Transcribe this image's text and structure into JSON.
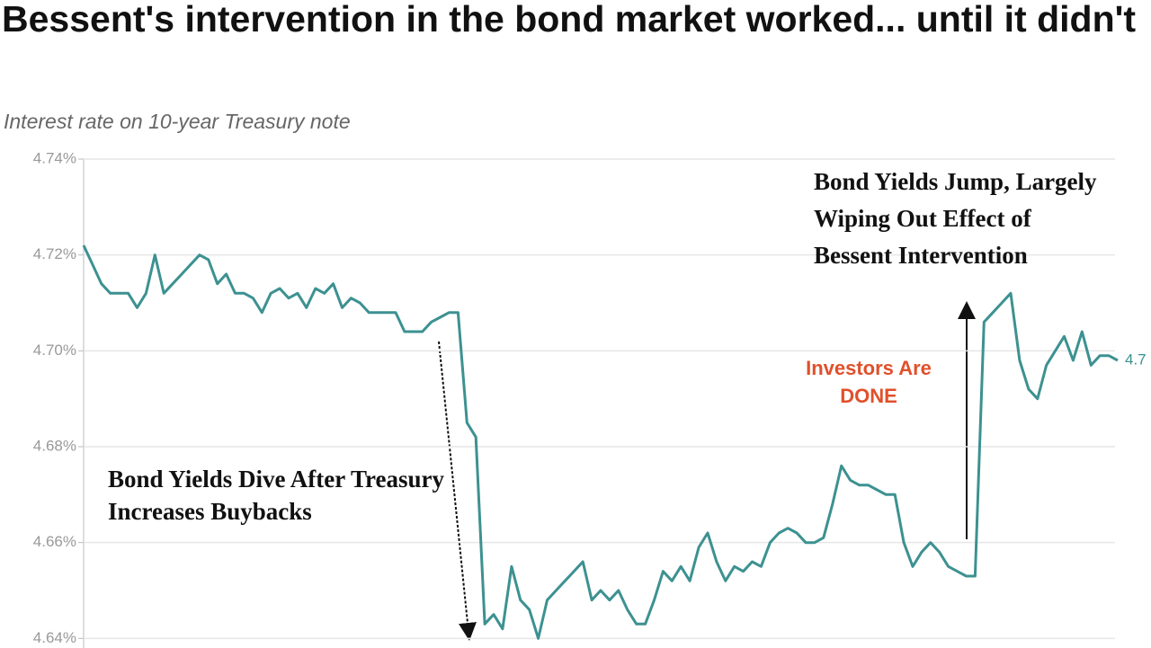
{
  "chart_data": {
    "type": "line",
    "title": "Bessent's intervention in the bond market worked... until it didn't",
    "subtitle": "Interest rate on 10-year Treasury note",
    "series": [
      {
        "name": "10-year Treasury yield",
        "color": "#3d9191",
        "values": [
          4.722,
          4.718,
          4.714,
          4.712,
          4.712,
          4.712,
          4.709,
          4.712,
          4.72,
          4.712,
          4.714,
          4.716,
          4.718,
          4.72,
          4.719,
          4.714,
          4.716,
          4.712,
          4.712,
          4.711,
          4.708,
          4.712,
          4.713,
          4.711,
          4.712,
          4.709,
          4.713,
          4.712,
          4.714,
          4.709,
          4.711,
          4.71,
          4.708,
          4.708,
          4.708,
          4.708,
          4.704,
          4.704,
          4.704,
          4.706,
          4.707,
          4.708,
          4.708,
          4.685,
          4.682,
          4.643,
          4.645,
          4.642,
          4.655,
          4.648,
          4.646,
          4.64,
          4.648,
          4.65,
          4.652,
          4.654,
          4.656,
          4.648,
          4.65,
          4.648,
          4.65,
          4.646,
          4.643,
          4.643,
          4.648,
          4.654,
          4.652,
          4.655,
          4.652,
          4.659,
          4.662,
          4.656,
          4.652,
          4.655,
          4.654,
          4.656,
          4.655,
          4.66,
          4.662,
          4.663,
          4.662,
          4.66,
          4.66,
          4.661,
          4.668,
          4.676,
          4.673,
          4.672,
          4.672,
          4.671,
          4.67,
          4.67,
          4.66,
          4.655,
          4.658,
          4.66,
          4.658,
          4.655,
          4.654,
          4.653,
          4.653,
          4.706,
          4.708,
          4.71,
          4.712,
          4.698,
          4.692,
          4.69,
          4.697,
          4.7,
          4.703,
          4.698,
          4.704,
          4.697,
          4.699,
          4.699,
          4.698
        ]
      }
    ],
    "end_label": "4.7",
    "ylim": [
      4.638,
      4.74
    ],
    "yticks": [
      {
        "value": 4.64,
        "label": "4.64%"
      },
      {
        "value": 4.66,
        "label": "4.66%"
      },
      {
        "value": 4.68,
        "label": "4.68%"
      },
      {
        "value": 4.7,
        "label": "4.70%"
      },
      {
        "value": 4.72,
        "label": "4.72%"
      },
      {
        "value": 4.74,
        "label": "4.74%"
      }
    ],
    "grid": true,
    "annotations": [
      {
        "lines": [
          "Bond Yields Dive After Treasury",
          "Increases Buybacks"
        ]
      },
      {
        "lines": [
          "Bond Yields Jump, Largely",
          "Wiping Out Effect of",
          "Bessent Intervention"
        ]
      },
      {
        "lines": [
          "Investors Are",
          "DONE"
        ]
      }
    ]
  }
}
